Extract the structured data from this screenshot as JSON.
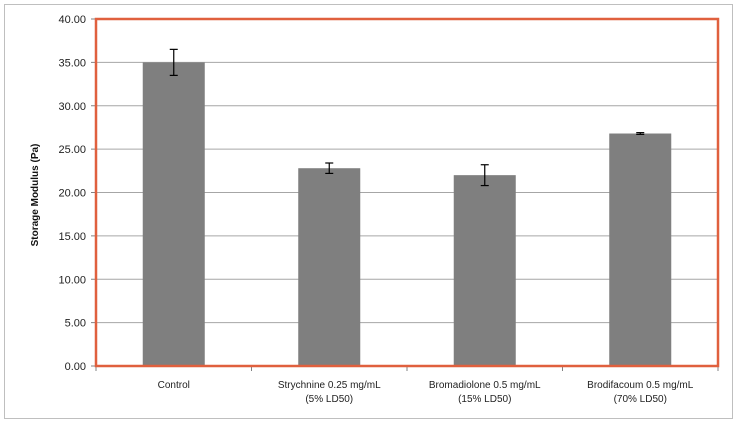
{
  "chart_data": {
    "type": "bar",
    "title": "",
    "xlabel": "",
    "ylabel": "Storage Modulus (Pa)",
    "ylim": [
      0,
      40
    ],
    "y_ticks": [
      "0.00",
      "5.00",
      "10.00",
      "15.00",
      "20.00",
      "25.00",
      "30.00",
      "35.00",
      "40.00"
    ],
    "grid": true,
    "legend": "none",
    "categories": [
      [
        "Control"
      ],
      [
        "Strychnine 0.25 mg/mL",
        "(5% LD50)"
      ],
      [
        "Bromadiolone 0.5 mg/mL",
        "(15% LD50)"
      ],
      [
        "Brodifacoum 0.5 mg/mL",
        "(70% LD50)"
      ]
    ],
    "values": [
      35.0,
      22.8,
      22.0,
      26.8
    ],
    "error": [
      1.5,
      0.6,
      1.2,
      0.1
    ],
    "bar_color": "#7f7f7f",
    "highlight_box_color": "#e0603e"
  }
}
